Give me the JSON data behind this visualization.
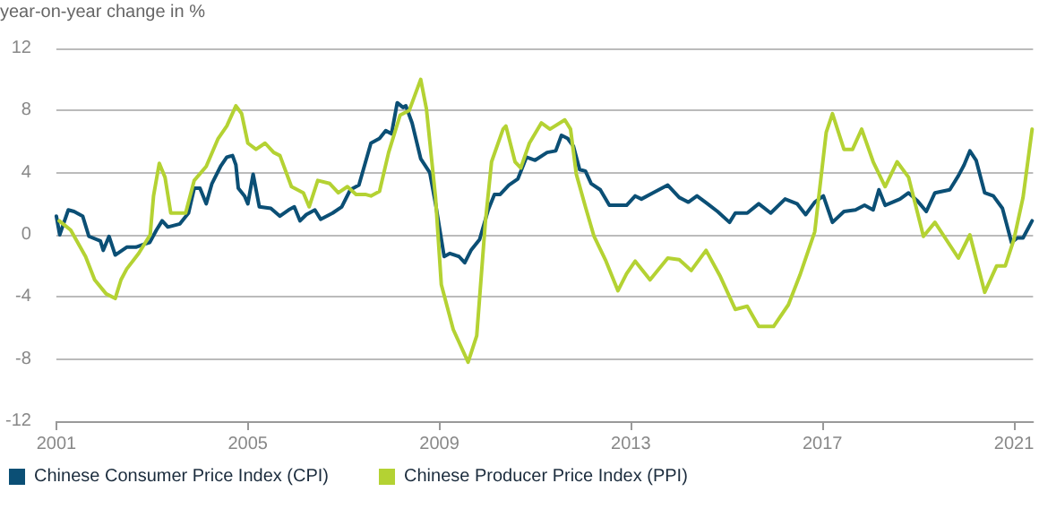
{
  "chart_data": {
    "type": "line",
    "ylabel": "year-on-year change in %",
    "xlim": [
      2001,
      2021.4
    ],
    "xticks": [
      2001,
      2005,
      2009,
      2013,
      2017,
      2021
    ],
    "ylim": [
      -12,
      12
    ],
    "yticks": [
      -12,
      -8,
      -4,
      0,
      4,
      8,
      12
    ],
    "grid": "y",
    "legend": "bottom left",
    "marker": "none",
    "line_style": "solid",
    "series": [
      {
        "name": "Chinese Consumer Price Index (CPI)",
        "color": "#0b4f75",
        "x": [
          2001.0,
          2001.07,
          2001.25,
          2001.37,
          2001.55,
          2001.68,
          2001.92,
          2001.98,
          2002.1,
          2002.23,
          2002.47,
          2002.66,
          2002.84,
          2002.95,
          2003.09,
          2003.21,
          2003.33,
          2003.58,
          2003.76,
          2003.88,
          2004.0,
          2004.13,
          2004.25,
          2004.43,
          2004.56,
          2004.68,
          2004.75,
          2004.8,
          2004.93,
          2005.0,
          2005.11,
          2005.24,
          2005.48,
          2005.67,
          2005.85,
          2005.97,
          2006.09,
          2006.22,
          2006.4,
          2006.52,
          2006.77,
          2006.96,
          2007.14,
          2007.32,
          2007.57,
          2007.75,
          2007.88,
          2008.0,
          2008.12,
          2008.24,
          2008.3,
          2008.43,
          2008.61,
          2008.8,
          2008.92,
          2009.1,
          2009.22,
          2009.41,
          2009.53,
          2009.66,
          2009.84,
          2010.02,
          2010.15,
          2010.27,
          2010.45,
          2010.64,
          2010.82,
          2011.0,
          2011.25,
          2011.43,
          2011.55,
          2011.68,
          2011.8,
          2011.93,
          2012.05,
          2012.17,
          2012.36,
          2012.55,
          2012.73,
          2012.91,
          2013.09,
          2013.22,
          2013.46,
          2013.77,
          2014.01,
          2014.2,
          2014.38,
          2014.6,
          2014.81,
          2015.06,
          2015.18,
          2015.43,
          2015.67,
          2015.92,
          2016.22,
          2016.47,
          2016.65,
          2016.84,
          2017.02,
          2017.21,
          2017.45,
          2017.69,
          2017.88,
          2018.06,
          2018.18,
          2018.31,
          2018.62,
          2018.8,
          2018.98,
          2019.17,
          2019.35,
          2019.66,
          2019.84,
          2019.96,
          2020.08,
          2020.21,
          2020.39,
          2020.57,
          2020.76,
          2020.95,
          2021.07,
          2021.19,
          2021.38
        ],
        "values": [
          1.2,
          0.0,
          1.6,
          1.5,
          1.2,
          -0.1,
          -0.4,
          -1.0,
          -0.1,
          -1.3,
          -0.8,
          -0.8,
          -0.6,
          -0.5,
          0.3,
          0.9,
          0.5,
          0.7,
          1.4,
          3.0,
          3.0,
          2.0,
          3.3,
          4.4,
          5.0,
          5.1,
          4.5,
          3.0,
          2.5,
          2.0,
          3.9,
          1.8,
          1.7,
          1.2,
          1.6,
          1.8,
          0.9,
          1.3,
          1.6,
          1.0,
          1.4,
          1.8,
          2.9,
          3.2,
          5.9,
          6.2,
          6.7,
          6.5,
          8.5,
          8.2,
          8.3,
          7.2,
          4.9,
          4.0,
          2.0,
          -1.4,
          -1.2,
          -1.4,
          -1.8,
          -1.0,
          -0.3,
          1.6,
          2.6,
          2.6,
          3.2,
          3.6,
          5.0,
          4.8,
          5.3,
          5.4,
          6.4,
          6.2,
          5.7,
          4.2,
          4.1,
          3.3,
          2.9,
          1.9,
          1.9,
          1.9,
          2.5,
          2.3,
          2.7,
          3.2,
          2.4,
          2.1,
          2.5,
          2.0,
          1.5,
          0.8,
          1.4,
          1.4,
          2.0,
          1.4,
          2.3,
          2.0,
          1.3,
          2.1,
          2.5,
          0.8,
          1.5,
          1.6,
          1.9,
          1.6,
          2.9,
          1.9,
          2.3,
          2.7,
          2.2,
          1.5,
          2.7,
          2.9,
          3.8,
          4.5,
          5.4,
          4.8,
          2.7,
          2.5,
          1.7,
          -0.5,
          -0.2,
          -0.2,
          0.9
        ]
      },
      {
        "name": "Chinese Producer Price Index (PPI)",
        "color": "#b4d233",
        "x": [
          2001.06,
          2001.3,
          2001.61,
          2001.8,
          2002.04,
          2002.23,
          2002.35,
          2002.47,
          2002.72,
          2002.96,
          2003.03,
          2003.15,
          2003.27,
          2003.39,
          2003.7,
          2003.88,
          2004.13,
          2004.38,
          2004.56,
          2004.75,
          2004.87,
          2005.0,
          2005.17,
          2005.36,
          2005.54,
          2005.67,
          2005.91,
          2006.16,
          2006.28,
          2006.46,
          2006.71,
          2006.89,
          2007.08,
          2007.26,
          2007.45,
          2007.57,
          2007.75,
          2007.94,
          2008.18,
          2008.37,
          2008.61,
          2008.73,
          2008.92,
          2009.04,
          2009.29,
          2009.6,
          2009.78,
          2009.96,
          2010.09,
          2010.33,
          2010.39,
          2010.58,
          2010.7,
          2010.88,
          2011.13,
          2011.31,
          2011.62,
          2011.74,
          2011.86,
          2012.05,
          2012.23,
          2012.48,
          2012.73,
          2012.91,
          2013.09,
          2013.4,
          2013.77,
          2014.01,
          2014.26,
          2014.57,
          2014.87,
          2015.18,
          2015.43,
          2015.67,
          2015.98,
          2016.29,
          2016.53,
          2016.84,
          2017.08,
          2017.21,
          2017.45,
          2017.63,
          2017.82,
          2018.06,
          2018.31,
          2018.56,
          2018.8,
          2019.11,
          2019.35,
          2019.84,
          2020.08,
          2020.39,
          2020.64,
          2020.82,
          2021.0,
          2021.19,
          2021.38
        ],
        "values": [
          0.9,
          0.3,
          -1.4,
          -2.9,
          -3.8,
          -4.1,
          -2.9,
          -2.2,
          -1.2,
          0.0,
          2.5,
          4.6,
          3.7,
          1.4,
          1.4,
          3.5,
          4.4,
          6.2,
          7.0,
          8.3,
          7.8,
          5.9,
          5.5,
          5.9,
          5.3,
          5.1,
          3.1,
          2.7,
          1.8,
          3.5,
          3.3,
          2.7,
          3.1,
          2.6,
          2.6,
          2.5,
          2.8,
          5.3,
          7.7,
          8.0,
          10.0,
          8.1,
          2.4,
          -3.2,
          -6.1,
          -8.2,
          -6.5,
          0.8,
          4.7,
          6.8,
          7.0,
          4.7,
          4.3,
          5.9,
          7.2,
          6.8,
          7.4,
          6.8,
          3.9,
          1.8,
          -0.1,
          -1.7,
          -3.6,
          -2.5,
          -1.7,
          -2.9,
          -1.5,
          -1.6,
          -2.3,
          -1.0,
          -2.7,
          -4.8,
          -4.6,
          -5.9,
          -5.9,
          -4.5,
          -2.6,
          0.2,
          6.6,
          7.8,
          5.5,
          5.5,
          6.8,
          4.7,
          3.1,
          4.7,
          3.7,
          -0.1,
          0.8,
          -1.5,
          0.0,
          -3.7,
          -2.0,
          -2.0,
          -0.3,
          2.4,
          6.8
        ]
      }
    ]
  }
}
